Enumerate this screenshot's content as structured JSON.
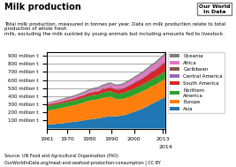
{
  "chart_data": {
    "type": "area",
    "stacked": true,
    "title": "Milk production",
    "subtitle": "Total milk production, measured in tonnes per year. Data on milk production relate to total production of whole fresh\nmilk, excluding the milk suckled by young animals but including amounts fed to livestock.",
    "source": "Source: UN Food and Agricultural Organisation (FAO)",
    "annotations": [
      "OurWorldInData.org/meat-and-seafood-production-consumption | CC BY",
      "Our World\nIn Data"
    ],
    "x": [
      1961,
      1962,
      1963,
      1964,
      1965,
      1966,
      1967,
      1968,
      1969,
      1970,
      1971,
      1972,
      1973,
      1974,
      1975,
      1976,
      1977,
      1978,
      1979,
      1980,
      1981,
      1982,
      1983,
      1984,
      1985,
      1986,
      1987,
      1988,
      1989,
      1990,
      1991,
      1992,
      1993,
      1994,
      1995,
      1996,
      1997,
      1998,
      1999,
      2000,
      2001,
      2002,
      2003,
      2004,
      2005,
      2006,
      2007,
      2008,
      2009,
      2010,
      2011,
      2012,
      2013,
      2014
    ],
    "series": [
      {
        "name": "Asia",
        "values": [
          50,
          52,
          54,
          56,
          58,
          61,
          64,
          67,
          70,
          74,
          77,
          80,
          83,
          87,
          91,
          95,
          99,
          104,
          109,
          113,
          117,
          120,
          123,
          127,
          132,
          137,
          142,
          148,
          152,
          155,
          152,
          153,
          155,
          158,
          163,
          170,
          178,
          186,
          196,
          207,
          218,
          228,
          238,
          250,
          263,
          276,
          291,
          306,
          319,
          333,
          347,
          361,
          375,
          390
        ]
      },
      {
        "name": "Europe",
        "values": [
          170,
          173,
          176,
          179,
          182,
          185,
          188,
          191,
          194,
          197,
          200,
          203,
          206,
          208,
          212,
          216,
          220,
          224,
          228,
          231,
          233,
          232,
          233,
          235,
          238,
          241,
          241,
          244,
          241,
          238,
          222,
          212,
          206,
          204,
          202,
          204,
          207,
          207,
          206,
          207,
          209,
          210,
          212,
          213,
          214,
          215,
          217,
          218,
          213,
          214,
          218,
          219,
          223,
          226
        ]
      },
      {
        "name": "Northern\nAmerica",
        "values": [
          57,
          58,
          59,
          59,
          59,
          59,
          58,
          58,
          58,
          57,
          57,
          57,
          57,
          57,
          58,
          58,
          58,
          59,
          60,
          61,
          62,
          63,
          64,
          57,
          65,
          66,
          65,
          66,
          66,
          67,
          68,
          69,
          71,
          72,
          74,
          75,
          76,
          78,
          79,
          80,
          80,
          80,
          81,
          82,
          83,
          84,
          85,
          87,
          87,
          88,
          90,
          91,
          93,
          95
        ]
      },
      {
        "name": "South America",
        "values": [
          16,
          17,
          18,
          18,
          19,
          20,
          20,
          21,
          22,
          23,
          24,
          25,
          26,
          27,
          28,
          29,
          30,
          31,
          33,
          35,
          36,
          37,
          38,
          39,
          41,
          43,
          44,
          46,
          47,
          48,
          49,
          50,
          51,
          53,
          55,
          57,
          60,
          63,
          66,
          69,
          72,
          74,
          77,
          80,
          83,
          86,
          89,
          92,
          95,
          98,
          101,
          104,
          107,
          110
        ]
      },
      {
        "name": "Central America",
        "values": [
          4,
          4,
          4,
          4,
          4,
          4,
          5,
          5,
          5,
          5,
          5,
          5,
          5,
          6,
          6,
          6,
          6,
          6,
          7,
          7,
          7,
          7,
          7,
          8,
          8,
          8,
          8,
          9,
          9,
          9,
          9,
          9,
          10,
          10,
          10,
          11,
          11,
          11,
          12,
          12,
          12,
          13,
          13,
          13,
          14,
          14,
          14,
          15,
          15,
          16,
          16,
          17,
          17,
          18
        ]
      },
      {
        "name": "Caribbean",
        "values": [
          2,
          2,
          2,
          2,
          2,
          2,
          2,
          2,
          2,
          2,
          2,
          2,
          2,
          2,
          2,
          2,
          2,
          2,
          2,
          2,
          2,
          2,
          2,
          2,
          2,
          2,
          2,
          2,
          2,
          2,
          2,
          2,
          2,
          2,
          2,
          2,
          2,
          2,
          2,
          2,
          2,
          2,
          2,
          2,
          2,
          2,
          2,
          2,
          2,
          2,
          2,
          2,
          2,
          2
        ]
      },
      {
        "name": "Africa",
        "values": [
          12,
          13,
          13,
          14,
          14,
          15,
          15,
          16,
          16,
          17,
          17,
          18,
          18,
          19,
          19,
          20,
          21,
          21,
          22,
          23,
          23,
          24,
          25,
          25,
          26,
          27,
          28,
          29,
          30,
          31,
          32,
          33,
          34,
          35,
          36,
          37,
          38,
          39,
          40,
          42,
          43,
          44,
          46,
          47,
          49,
          51,
          53,
          55,
          57,
          59,
          61,
          64,
          66,
          69
        ]
      },
      {
        "name": "Oceania",
        "values": [
          10,
          10,
          10,
          11,
          11,
          12,
          12,
          13,
          13,
          14,
          14,
          14,
          15,
          15,
          16,
          16,
          17,
          17,
          18,
          18,
          18,
          19,
          19,
          20,
          20,
          21,
          21,
          22,
          22,
          17,
          18,
          18,
          18,
          19,
          19,
          19,
          20,
          20,
          21,
          22,
          22,
          22,
          23,
          23,
          24,
          24,
          25,
          25,
          26,
          26,
          27,
          27,
          28,
          28
        ]
      }
    ],
    "xlim": [
      1961,
      2014
    ],
    "xticks": [
      1961,
      1970,
      1980,
      1990,
      2000,
      2013,
      2014
    ],
    "ylim": [
      0,
      950
    ],
    "yticks": [
      {
        "value": 100,
        "label": "100 million t"
      },
      {
        "value": 200,
        "label": "200 million t"
      },
      {
        "value": 300,
        "label": "300 million t"
      },
      {
        "value": 400,
        "label": "400 million t"
      },
      {
        "value": 500,
        "label": "500 million t"
      },
      {
        "value": 600,
        "label": "600 million t"
      },
      {
        "value": 700,
        "label": "700 million t"
      },
      {
        "value": 800,
        "label": "800 million t"
      },
      {
        "value": 900,
        "label": "900 million t"
      }
    ],
    "grid": "y",
    "legend": "right"
  }
}
